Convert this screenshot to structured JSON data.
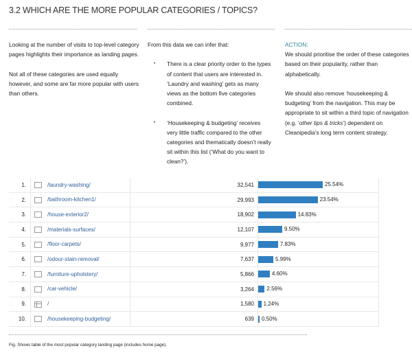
{
  "title": "3.2 WHICH ARE THE MORE POPULAR CATEGORIES / TOPICS?",
  "col1": {
    "p1": "Looking at the number of visits to top-level category pages highlights their importance as landing pages.",
    "p2": "Not all of these categories are used equally however, and some are far more popular with users than others."
  },
  "col2": {
    "intro": "From this data we can infer that:",
    "bullets": [
      "There is a clear priority order to the types of content that users are interested in. ‘Laundry and washing’ gets as many views as the bottom five categories combined.",
      "‘Housekeeping & budgeting’ receives very little traffic compared to the other categories and thematically doesn’t really sit within this list (‘What do you want to clean?’)."
    ]
  },
  "col3": {
    "heading": "ACTION:",
    "p1": "We should prioritise the order of these categories based on their popularity, rather than alphabetically.",
    "p2a": "We should also remove ‘housekeeping & budgeting’ from the navigation. This may be appropriate to sit within a third topic of navigation (e.g. ‘",
    "p2i": "other tips & tricks",
    "p2b": "’) dependent on Cleanipedia’s long term content strategy."
  },
  "table": {
    "rows": [
      {
        "rank": "1.",
        "page": "/laundry-washing/",
        "visits": "32,541",
        "pct": "25.54%",
        "value": 25.54,
        "icon": "folder"
      },
      {
        "rank": "2.",
        "page": "/bathroom-kitchen1/",
        "visits": "29,993",
        "pct": "23.54%",
        "value": 23.54,
        "icon": "folder"
      },
      {
        "rank": "3.",
        "page": "/house-exterior2/",
        "visits": "18,902",
        "pct": "14.83%",
        "value": 14.83,
        "icon": "folder"
      },
      {
        "rank": "4.",
        "page": "/materials-surfaces/",
        "visits": "12,107",
        "pct": "9.50%",
        "value": 9.5,
        "icon": "folder"
      },
      {
        "rank": "5.",
        "page": "/floor-carpets/",
        "visits": "9,977",
        "pct": "7.83%",
        "value": 7.83,
        "icon": "folder"
      },
      {
        "rank": "6.",
        "page": "/odour-stain-removal/",
        "visits": "7,637",
        "pct": "5.99%",
        "value": 5.99,
        "icon": "folder"
      },
      {
        "rank": "7.",
        "page": "/furniture-upholstery/",
        "visits": "5,866",
        "pct": "4.60%",
        "value": 4.6,
        "icon": "folder"
      },
      {
        "rank": "8.",
        "page": "/car-vehicle/",
        "visits": "3,264",
        "pct": "2.56%",
        "value": 2.56,
        "icon": "folder"
      },
      {
        "rank": "9.",
        "page": "/",
        "visits": "1,580",
        "pct": "1.24%",
        "value": 1.24,
        "icon": "page"
      },
      {
        "rank": "10.",
        "page": "/housekeeping-budgeting/",
        "visits": "639",
        "pct": "0.50%",
        "value": 0.5,
        "icon": "folder"
      }
    ]
  },
  "caption": "Fig. Shows table of the most popular category landing page (includes home page)."
}
